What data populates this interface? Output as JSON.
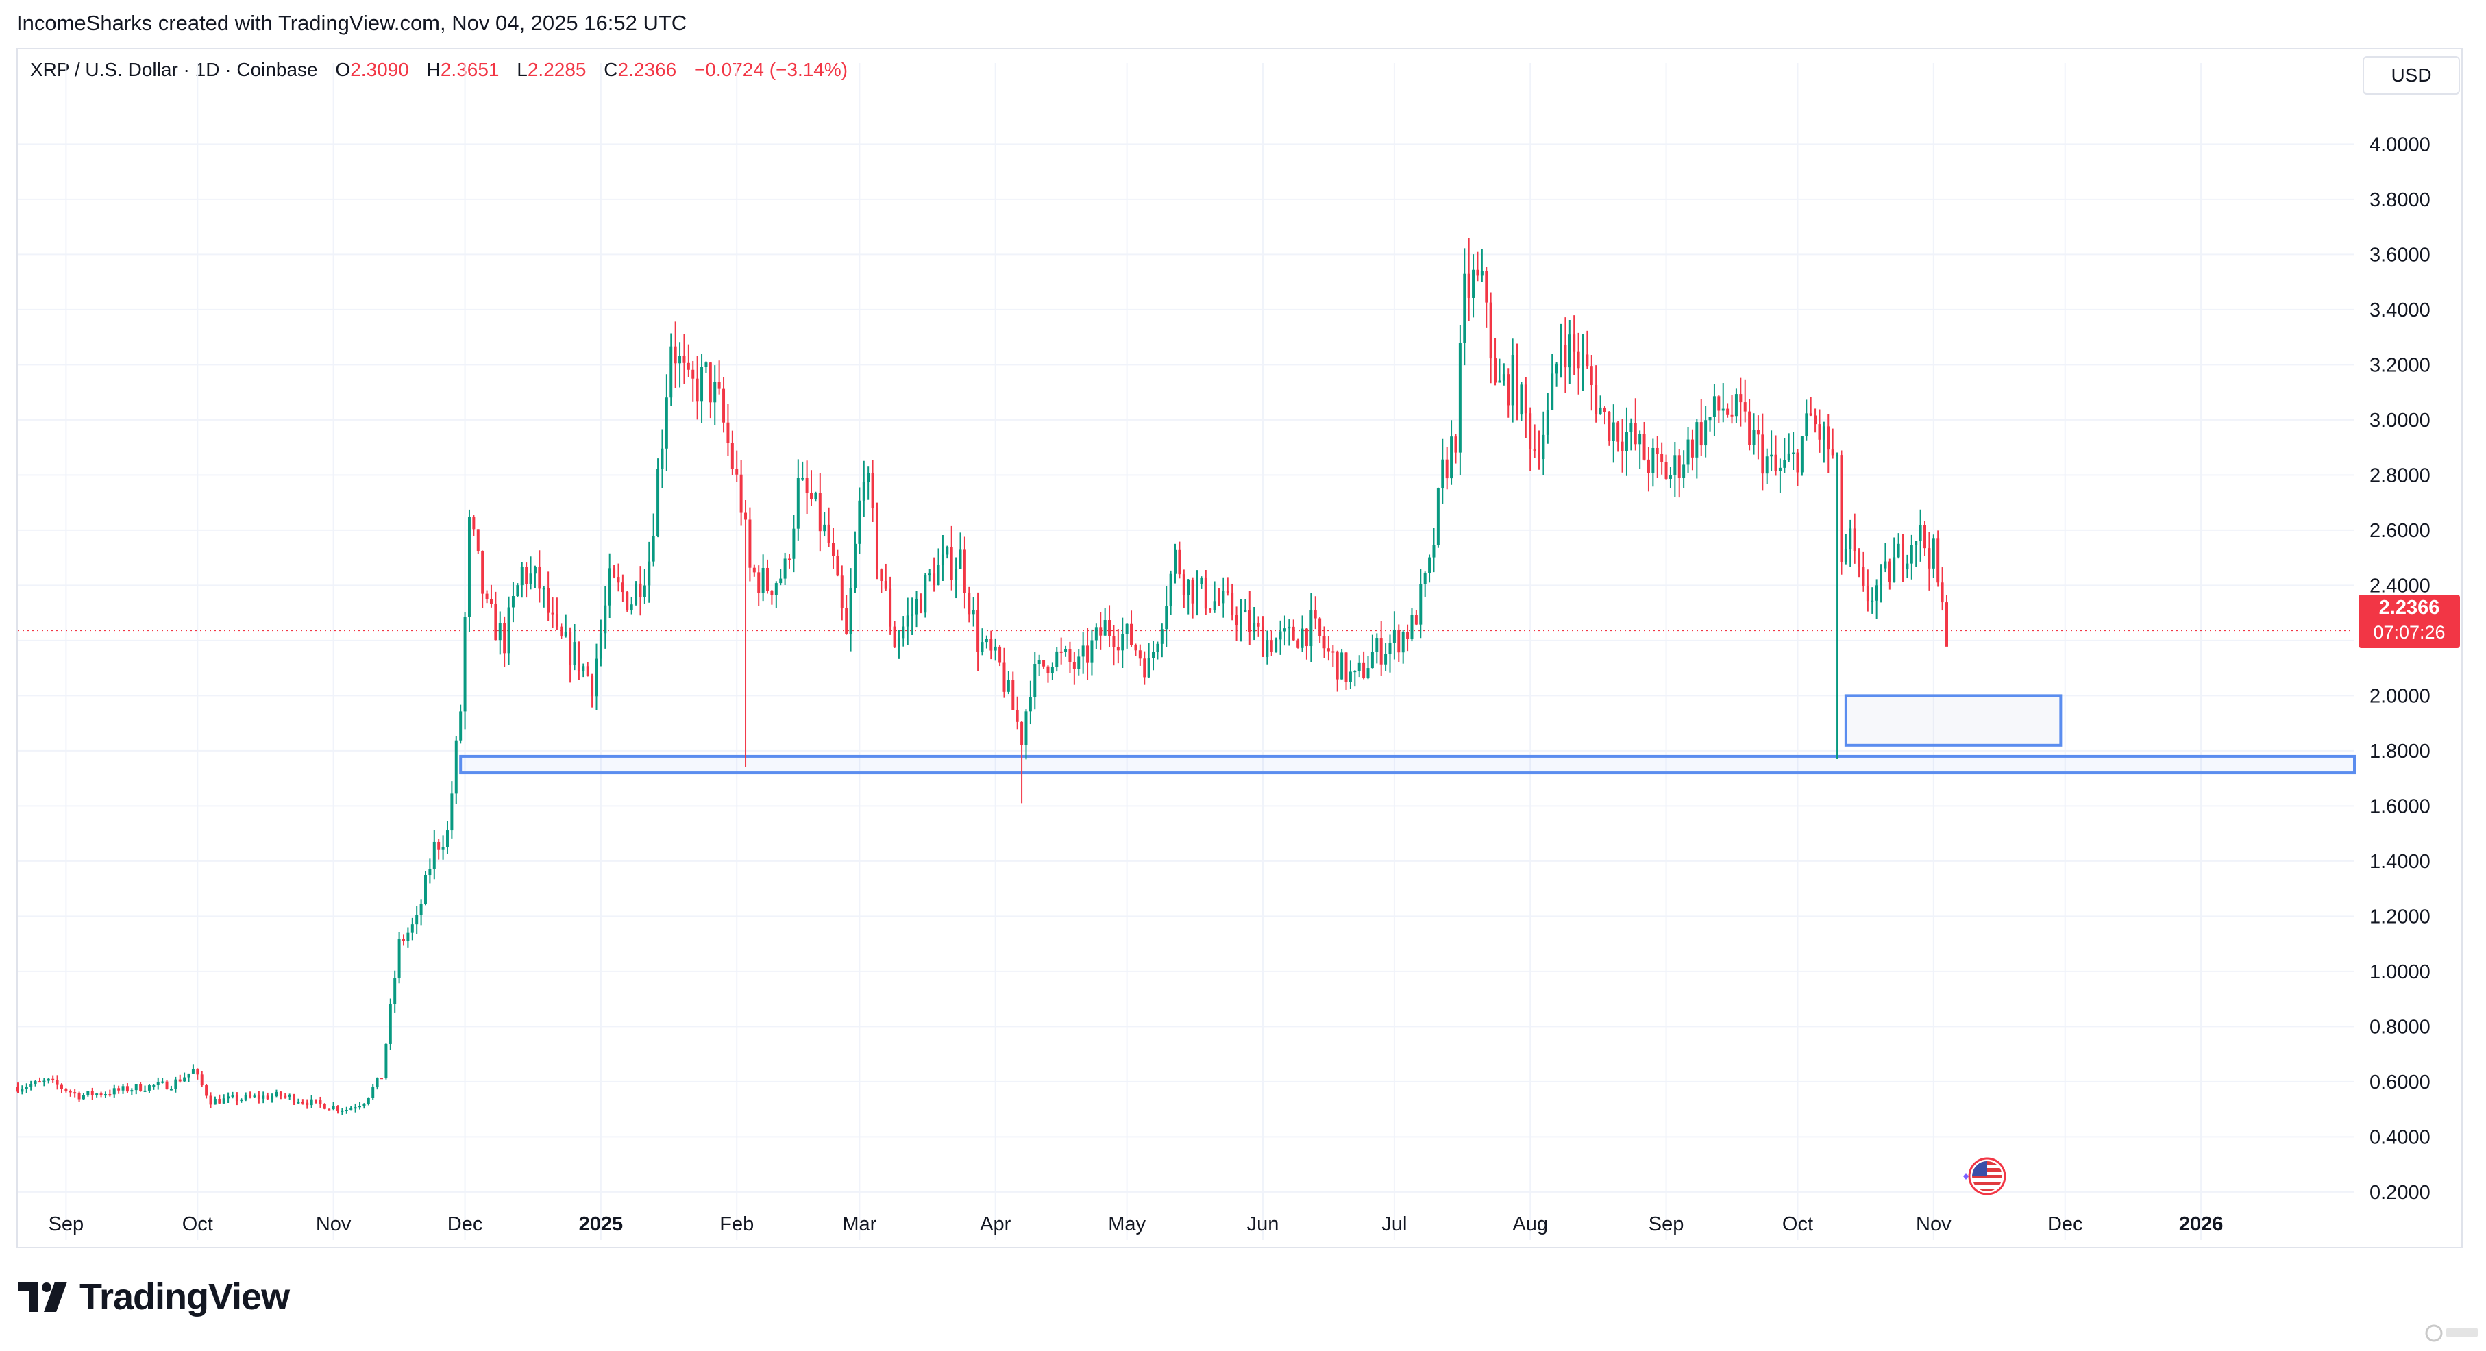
{
  "header": {
    "attribution": "IncomeSharks created with TradingView.com, Nov 04, 2025 16:52 UTC"
  },
  "legend": {
    "symbol": "XRP / U.S. Dollar · 1D · Coinbase",
    "o_label": "O",
    "o_value": "2.3090",
    "h_label": "H",
    "h_value": "2.3651",
    "l_label": "L",
    "l_value": "2.2285",
    "c_label": "C",
    "c_value": "2.2366",
    "change": "−0.0724 (−3.14%)"
  },
  "currency_button": "USD",
  "price_badge": {
    "price": "2.2366",
    "countdown": "07:07:26"
  },
  "branding": {
    "logo_text": "TradingView"
  },
  "colors": {
    "up": "#089981",
    "down": "#f23645",
    "grid": "#f0f3fa",
    "box": "#5b8def"
  },
  "chart_data": {
    "type": "candlestick",
    "title": "XRP / U.S. Dollar · 1D · Coinbase",
    "ylim": [
      0.15,
      4.15
    ],
    "y_ticks": [
      "4.0000",
      "3.8000",
      "3.6000",
      "3.4000",
      "3.2000",
      "3.0000",
      "2.8000",
      "2.6000",
      "2.4000",
      "2.2000",
      "2.0000",
      "1.8000",
      "1.6000",
      "1.4000",
      "1.2000",
      "1.0000",
      "0.8000",
      "0.6000",
      "0.4000",
      "0.2000"
    ],
    "x_ticks": [
      "Sep",
      "Oct",
      "Nov",
      "Dec",
      "2025",
      "Feb",
      "Mar",
      "Apr",
      "May",
      "Jun",
      "Jul",
      "Aug",
      "Sep",
      "Oct",
      "Nov",
      "Dec",
      "2026"
    ],
    "x_range": [
      "2024-08-21",
      "2026-02-05"
    ],
    "last_price": 2.2366,
    "support_zone": {
      "low": 1.72,
      "high": 1.78,
      "from": "2024-11-30",
      "to": "2026-02-05"
    },
    "target_box": {
      "low": 1.82,
      "high": 2.0,
      "from": "2025-10-12",
      "to": "2025-11-30"
    },
    "series_path": [
      [
        "2024-08-21",
        0.58
      ],
      [
        "2024-08-28",
        0.6
      ],
      [
        "2024-09-04",
        0.55
      ],
      [
        "2024-09-10",
        0.56
      ],
      [
        "2024-09-18",
        0.58
      ],
      [
        "2024-09-25",
        0.59
      ],
      [
        "2024-09-30",
        0.64
      ],
      [
        "2024-10-04",
        0.53
      ],
      [
        "2024-10-12",
        0.54
      ],
      [
        "2024-10-20",
        0.55
      ],
      [
        "2024-10-28",
        0.52
      ],
      [
        "2024-11-04",
        0.5
      ],
      [
        "2024-11-08",
        0.53
      ],
      [
        "2024-11-12",
        0.62
      ],
      [
        "2024-11-16",
        1.1
      ],
      [
        "2024-11-20",
        1.18
      ],
      [
        "2024-11-24",
        1.45
      ],
      [
        "2024-11-27",
        1.5
      ],
      [
        "2024-11-30",
        1.95
      ],
      [
        "2024-12-02",
        2.6
      ],
      [
        "2024-12-03",
        2.55
      ],
      [
        "2024-12-06",
        2.3
      ],
      [
        "2024-12-10",
        2.2
      ],
      [
        "2024-12-14",
        2.45
      ],
      [
        "2024-12-18",
        2.4
      ],
      [
        "2024-12-22",
        2.2
      ],
      [
        "2024-12-26",
        2.15
      ],
      [
        "2024-12-30",
        2.05
      ],
      [
        "2025-01-03",
        2.4
      ],
      [
        "2025-01-08",
        2.35
      ],
      [
        "2025-01-12",
        2.5
      ],
      [
        "2025-01-15",
        2.95
      ],
      [
        "2025-01-17",
        3.3
      ],
      [
        "2025-01-21",
        3.1
      ],
      [
        "2025-01-25",
        3.15
      ],
      [
        "2025-01-28",
        3.05
      ],
      [
        "2025-02-02",
        2.7
      ],
      [
        "2025-02-04",
        2.45
      ],
      [
        "2025-02-08",
        2.4
      ],
      [
        "2025-02-12",
        2.45
      ],
      [
        "2025-02-15",
        2.75
      ],
      [
        "2025-02-18",
        2.7
      ],
      [
        "2025-02-22",
        2.55
      ],
      [
        "2025-02-26",
        2.2
      ],
      [
        "2025-03-02",
        2.85
      ],
      [
        "2025-03-05",
        2.5
      ],
      [
        "2025-03-09",
        2.2
      ],
      [
        "2025-03-13",
        2.3
      ],
      [
        "2025-03-18",
        2.45
      ],
      [
        "2025-03-24",
        2.5
      ],
      [
        "2025-03-28",
        2.2
      ],
      [
        "2025-04-02",
        2.1
      ],
      [
        "2025-04-07",
        1.85
      ],
      [
        "2025-04-09",
        2.05
      ],
      [
        "2025-04-14",
        2.15
      ],
      [
        "2025-04-20",
        2.1
      ],
      [
        "2025-04-26",
        2.25
      ],
      [
        "2025-05-02",
        2.2
      ],
      [
        "2025-05-06",
        2.1
      ],
      [
        "2025-05-12",
        2.5
      ],
      [
        "2025-05-15",
        2.4
      ],
      [
        "2025-05-20",
        2.35
      ],
      [
        "2025-05-26",
        2.3
      ],
      [
        "2025-06-01",
        2.2
      ],
      [
        "2025-06-06",
        2.2
      ],
      [
        "2025-06-12",
        2.25
      ],
      [
        "2025-06-16",
        2.15
      ],
      [
        "2025-06-22",
        2.05
      ],
      [
        "2025-06-26",
        2.15
      ],
      [
        "2025-07-01",
        2.2
      ],
      [
        "2025-07-05",
        2.25
      ],
      [
        "2025-07-09",
        2.45
      ],
      [
        "2025-07-12",
        2.8
      ],
      [
        "2025-07-15",
        2.95
      ],
      [
        "2025-07-17",
        3.45
      ],
      [
        "2025-07-19",
        3.5
      ],
      [
        "2025-07-22",
        3.45
      ],
      [
        "2025-07-24",
        3.1
      ],
      [
        "2025-07-28",
        3.15
      ],
      [
        "2025-08-02",
        2.9
      ],
      [
        "2025-08-05",
        3.0
      ],
      [
        "2025-08-08",
        3.3
      ],
      [
        "2025-08-13",
        3.2
      ],
      [
        "2025-08-18",
        3.0
      ],
      [
        "2025-08-23",
        2.95
      ],
      [
        "2025-08-28",
        2.85
      ],
      [
        "2025-09-02",
        2.8
      ],
      [
        "2025-09-08",
        2.95
      ],
      [
        "2025-09-14",
        3.05
      ],
      [
        "2025-09-18",
        3.0
      ],
      [
        "2025-09-22",
        2.9
      ],
      [
        "2025-09-26",
        2.8
      ],
      [
        "2025-09-30",
        2.85
      ],
      [
        "2025-10-04",
        3.0
      ],
      [
        "2025-10-08",
        2.9
      ],
      [
        "2025-10-10",
        2.8
      ],
      [
        "2025-10-11",
        2.5
      ],
      [
        "2025-10-13",
        2.55
      ],
      [
        "2025-10-16",
        2.35
      ],
      [
        "2025-10-20",
        2.4
      ],
      [
        "2025-10-24",
        2.5
      ],
      [
        "2025-10-28",
        2.6
      ],
      [
        "2025-11-01",
        2.5
      ],
      [
        "2025-11-03",
        2.3
      ],
      [
        "2025-11-04",
        2.2366
      ]
    ],
    "grid": true
  }
}
